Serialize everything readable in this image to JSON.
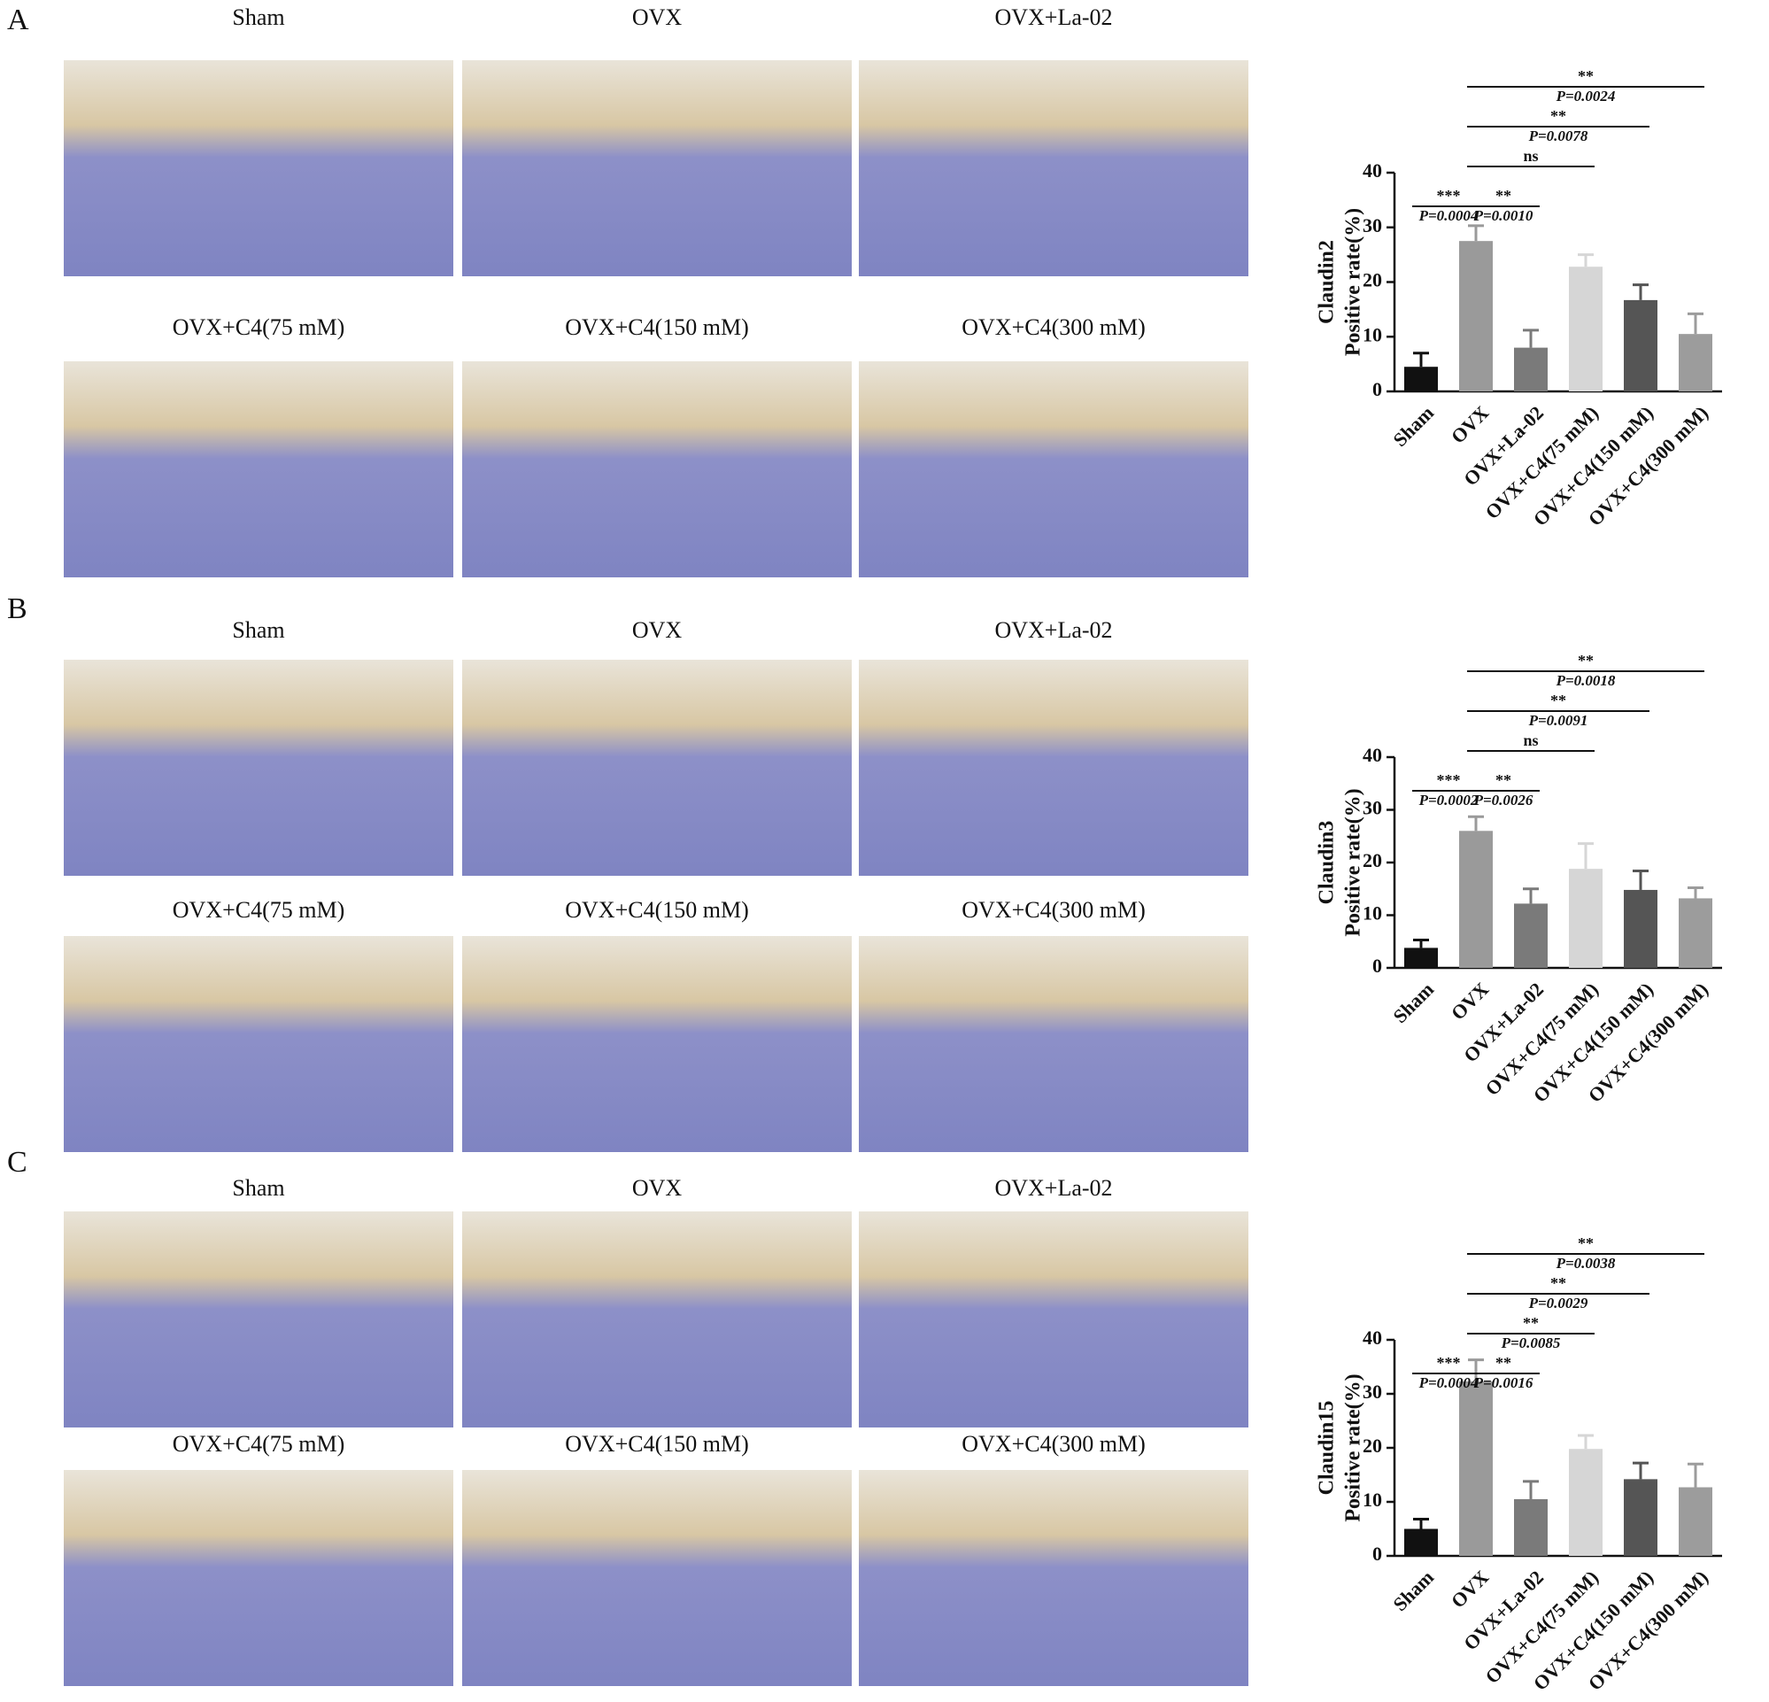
{
  "panels": [
    {
      "label": "A",
      "images": [
        "Sham",
        "OVX",
        "OVX+La-02",
        "OVX+C4(75 mM)",
        "OVX+C4(150 mM)",
        "OVX+C4(300 mM)"
      ]
    },
    {
      "label": "B",
      "images": [
        "Sham",
        "OVX",
        "OVX+La-02",
        "OVX+C4(75 mM)",
        "OVX+C4(150 mM)",
        "OVX+C4(300 mM)"
      ]
    },
    {
      "label": "C",
      "images": [
        "Sham",
        "OVX",
        "OVX+La-02",
        "OVX+C4(75 mM)",
        "OVX+C4(150 mM)",
        "OVX+C4(300 mM)"
      ]
    }
  ],
  "chart_data": [
    {
      "type": "bar",
      "ylabel": [
        "Claudin2",
        "Positive rate(%)"
      ],
      "categories": [
        "Sham",
        "OVX",
        "OVX+La-02",
        "OVX+C4(75 mM)",
        "OVX+C4(150 mM)",
        "OVX+C4(300 mM)"
      ],
      "values": [
        4.5,
        27.5,
        8,
        22.8,
        16.7,
        10.5
      ],
      "errors": [
        2.5,
        2.8,
        3.2,
        2.2,
        2.8,
        3.7
      ],
      "colors": [
        "#111111",
        "#9a9a9a",
        "#7a7a7a",
        "#d6d6d6",
        "#555555",
        "#9c9c9c"
      ],
      "ylim": [
        0,
        40
      ],
      "yticks": [
        0,
        10,
        20,
        30,
        40
      ],
      "comparisons": [
        {
          "from": "Sham",
          "to": "OVX",
          "label": "***",
          "p": "P=0.0004"
        },
        {
          "from": "OVX",
          "to": "OVX+La-02",
          "label": "**",
          "p": "P=0.0010"
        },
        {
          "from": "OVX",
          "to": "OVX+C4(75 mM)",
          "label": "ns"
        },
        {
          "from": "OVX",
          "to": "OVX+C4(150 mM)",
          "label": "**",
          "p": "P=0.0078"
        },
        {
          "from": "OVX",
          "to": "OVX+C4(300 mM)",
          "label": "**",
          "p": "P=0.0024"
        }
      ]
    },
    {
      "type": "bar",
      "ylabel": [
        "Claudin3",
        "Positive rate(%)"
      ],
      "categories": [
        "Sham",
        "OVX",
        "OVX+La-02",
        "OVX+C4(75 mM)",
        "OVX+C4(150 mM)",
        "OVX+C4(300 mM)"
      ],
      "values": [
        3.8,
        26,
        12.2,
        18.8,
        14.8,
        13.2
      ],
      "errors": [
        1.5,
        2.7,
        2.8,
        4.8,
        3.6,
        2
      ],
      "colors": [
        "#111111",
        "#9a9a9a",
        "#7a7a7a",
        "#d6d6d6",
        "#555555",
        "#9c9c9c"
      ],
      "ylim": [
        0,
        40
      ],
      "yticks": [
        0,
        10,
        20,
        30,
        40
      ],
      "comparisons": [
        {
          "from": "Sham",
          "to": "OVX",
          "label": "***",
          "p": "P=0.0002"
        },
        {
          "from": "OVX",
          "to": "OVX+La-02",
          "label": "**",
          "p": "P=0.0026"
        },
        {
          "from": "OVX",
          "to": "OVX+C4(75 mM)",
          "label": "ns"
        },
        {
          "from": "OVX",
          "to": "OVX+C4(150 mM)",
          "label": "**",
          "p": "P=0.0091"
        },
        {
          "from": "OVX",
          "to": "OVX+C4(300 mM)",
          "label": "**",
          "p": "P=0.0018"
        }
      ]
    },
    {
      "type": "bar",
      "ylabel": [
        "Claudin15",
        "Positive rate(%)"
      ],
      "categories": [
        "Sham",
        "OVX",
        "OVX+La-02",
        "OVX+C4(75 mM)",
        "OVX+C4(150 mM)",
        "OVX+C4(300 mM)"
      ],
      "values": [
        5,
        32.3,
        10.5,
        19.8,
        14.2,
        12.7
      ],
      "errors": [
        1.8,
        4,
        3.3,
        2.5,
        3,
        4.3
      ],
      "colors": [
        "#111111",
        "#9a9a9a",
        "#7a7a7a",
        "#d6d6d6",
        "#555555",
        "#9c9c9c"
      ],
      "ylim": [
        0,
        40
      ],
      "yticks": [
        0,
        10,
        20,
        30,
        40
      ],
      "comparisons": [
        {
          "from": "Sham",
          "to": "OVX",
          "label": "***",
          "p": "P=0.0004"
        },
        {
          "from": "OVX",
          "to": "OVX+La-02",
          "label": "**",
          "p": "P=0.0016"
        },
        {
          "from": "OVX",
          "to": "OVX+C4(75 mM)",
          "label": "**",
          "p": "P=0.0085"
        },
        {
          "from": "OVX",
          "to": "OVX+C4(150 mM)",
          "label": "**",
          "p": "P=0.0029"
        },
        {
          "from": "OVX",
          "to": "OVX+C4(300 mM)",
          "label": "**",
          "p": "P=0.0038"
        }
      ]
    }
  ]
}
